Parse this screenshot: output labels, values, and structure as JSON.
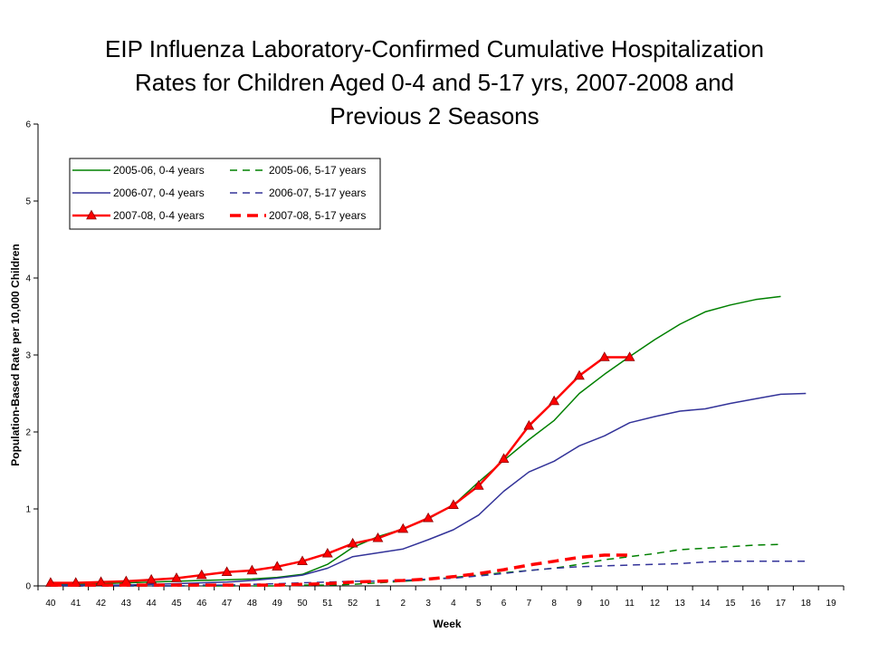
{
  "chart_data": {
    "type": "line",
    "title_lines": [
      "EIP Influenza Laboratory-Confirmed Cumulative Hospitalization",
      "Rates for Children Aged 0-4 and 5-17 yrs, 2007-2008 and",
      "Previous 2 Seasons"
    ],
    "xlabel": "Week",
    "ylabel": "Population-Based Rate per 10,000 Children",
    "categories": [
      "40",
      "41",
      "42",
      "43",
      "44",
      "45",
      "46",
      "47",
      "48",
      "49",
      "50",
      "51",
      "52",
      "1",
      "2",
      "3",
      "4",
      "5",
      "6",
      "7",
      "8",
      "9",
      "10",
      "11",
      "12",
      "13",
      "14",
      "15",
      "16",
      "17",
      "18",
      "19"
    ],
    "ylim": [
      0,
      6
    ],
    "ystep": 1,
    "grid": false,
    "legend_position": "top-left",
    "series": [
      {
        "name": "2005-06, 0-4 years",
        "color": "#008000",
        "dash": "solid",
        "width": 1.5,
        "marker": "none",
        "values": [
          0.02,
          0.02,
          0.03,
          0.04,
          0.05,
          0.06,
          0.07,
          0.08,
          0.09,
          0.11,
          0.15,
          0.28,
          0.5,
          0.64,
          0.74,
          0.87,
          1.05,
          1.35,
          1.63,
          1.9,
          2.15,
          2.5,
          2.75,
          2.98,
          3.2,
          3.4,
          3.56,
          3.65,
          3.72,
          3.76,
          null,
          null
        ]
      },
      {
        "name": "2005-06, 5-17 years",
        "color": "#008000",
        "dash": "dashed",
        "width": 1.5,
        "marker": "none",
        "values": [
          0.0,
          0.0,
          0.0,
          0.0,
          0.0,
          0.0,
          0.0,
          0.0,
          0.0,
          0.0,
          0.01,
          0.01,
          0.02,
          0.04,
          0.06,
          0.08,
          0.11,
          0.14,
          0.17,
          0.2,
          0.23,
          0.28,
          0.34,
          0.38,
          0.42,
          0.47,
          0.49,
          0.51,
          0.53,
          0.54,
          null,
          null
        ]
      },
      {
        "name": "2006-07, 0-4 years",
        "color": "#333399",
        "dash": "solid",
        "width": 1.5,
        "marker": "none",
        "values": [
          0.01,
          0.01,
          0.01,
          0.01,
          0.02,
          0.03,
          0.04,
          0.05,
          0.07,
          0.1,
          0.14,
          0.23,
          0.38,
          0.43,
          0.48,
          0.6,
          0.73,
          0.92,
          1.23,
          1.48,
          1.62,
          1.82,
          1.95,
          2.12,
          2.2,
          2.27,
          2.3,
          2.37,
          2.43,
          2.49,
          2.5,
          null
        ]
      },
      {
        "name": "2006-07, 5-17 years",
        "color": "#333399",
        "dash": "dashed",
        "width": 1.5,
        "marker": "none",
        "values": [
          0.0,
          0.0,
          0.0,
          0.0,
          0.0,
          0.0,
          0.01,
          0.01,
          0.02,
          0.03,
          0.04,
          0.05,
          0.06,
          0.06,
          0.07,
          0.09,
          0.1,
          0.13,
          0.16,
          0.2,
          0.23,
          0.25,
          0.26,
          0.27,
          0.28,
          0.29,
          0.31,
          0.32,
          0.32,
          0.32,
          0.32,
          null
        ]
      },
      {
        "name": "2007-08, 0-4 years",
        "color": "#FF0000",
        "dash": "solid",
        "width": 2.5,
        "marker": "triangle",
        "values": [
          0.04,
          0.04,
          0.05,
          0.06,
          0.08,
          0.1,
          0.14,
          0.18,
          0.2,
          0.25,
          0.32,
          0.42,
          0.55,
          0.62,
          0.74,
          0.88,
          1.05,
          1.3,
          1.65,
          2.08,
          2.4,
          2.73,
          2.97,
          2.97,
          null,
          null,
          null,
          null,
          null,
          null,
          null,
          null
        ]
      },
      {
        "name": "2007-08, 5-17 years",
        "color": "#FF0000",
        "dash": "dashed",
        "width": 3.5,
        "marker": "none",
        "values": [
          0.01,
          0.01,
          0.01,
          0.01,
          0.01,
          0.01,
          0.01,
          0.01,
          0.01,
          0.01,
          0.02,
          0.03,
          0.05,
          0.06,
          0.07,
          0.09,
          0.12,
          0.16,
          0.21,
          0.27,
          0.32,
          0.37,
          0.4,
          0.4,
          null,
          null,
          null,
          null,
          null,
          null,
          null,
          null
        ]
      }
    ]
  }
}
